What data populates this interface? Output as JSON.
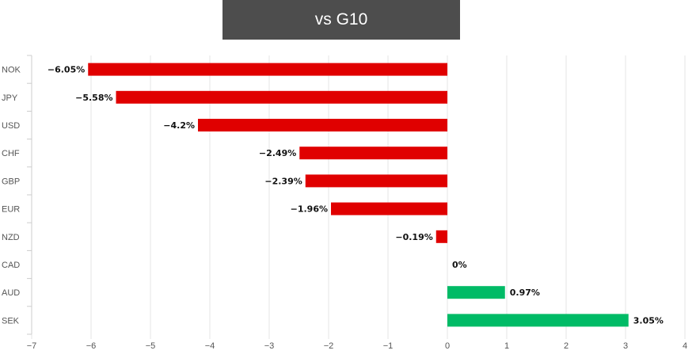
{
  "chart_data": {
    "type": "bar",
    "orientation": "horizontal",
    "title": "vs G10",
    "categories": [
      "NOK",
      "JPY",
      "USD",
      "CHF",
      "GBP",
      "EUR",
      "NZD",
      "CAD",
      "AUD",
      "SEK"
    ],
    "values": [
      -6.05,
      -5.58,
      -4.2,
      -2.49,
      -2.39,
      -1.96,
      -0.19,
      0,
      0.97,
      3.05
    ],
    "data_labels": [
      "−6.05%",
      "−5.58%",
      "−4.2%",
      "−2.49%",
      "−2.39%",
      "−1.96%",
      "−0.19%",
      "0%",
      "0.97%",
      "3.05%"
    ],
    "x_ticks": [
      -7,
      -6,
      -5,
      -4,
      -3,
      -2,
      -1,
      0,
      1,
      2,
      3,
      4
    ],
    "x_tick_labels": [
      "−7",
      "−6",
      "−5",
      "−4",
      "−3",
      "−2",
      "−1",
      "0",
      "1",
      "2",
      "3",
      "4"
    ],
    "xlim": [
      -7,
      4
    ],
    "xlabel": "",
    "ylabel": "",
    "grid": true,
    "colors": {
      "negative": "#e00000",
      "positive": "#00bb66",
      "title_bg": "#4d4d4d"
    }
  }
}
